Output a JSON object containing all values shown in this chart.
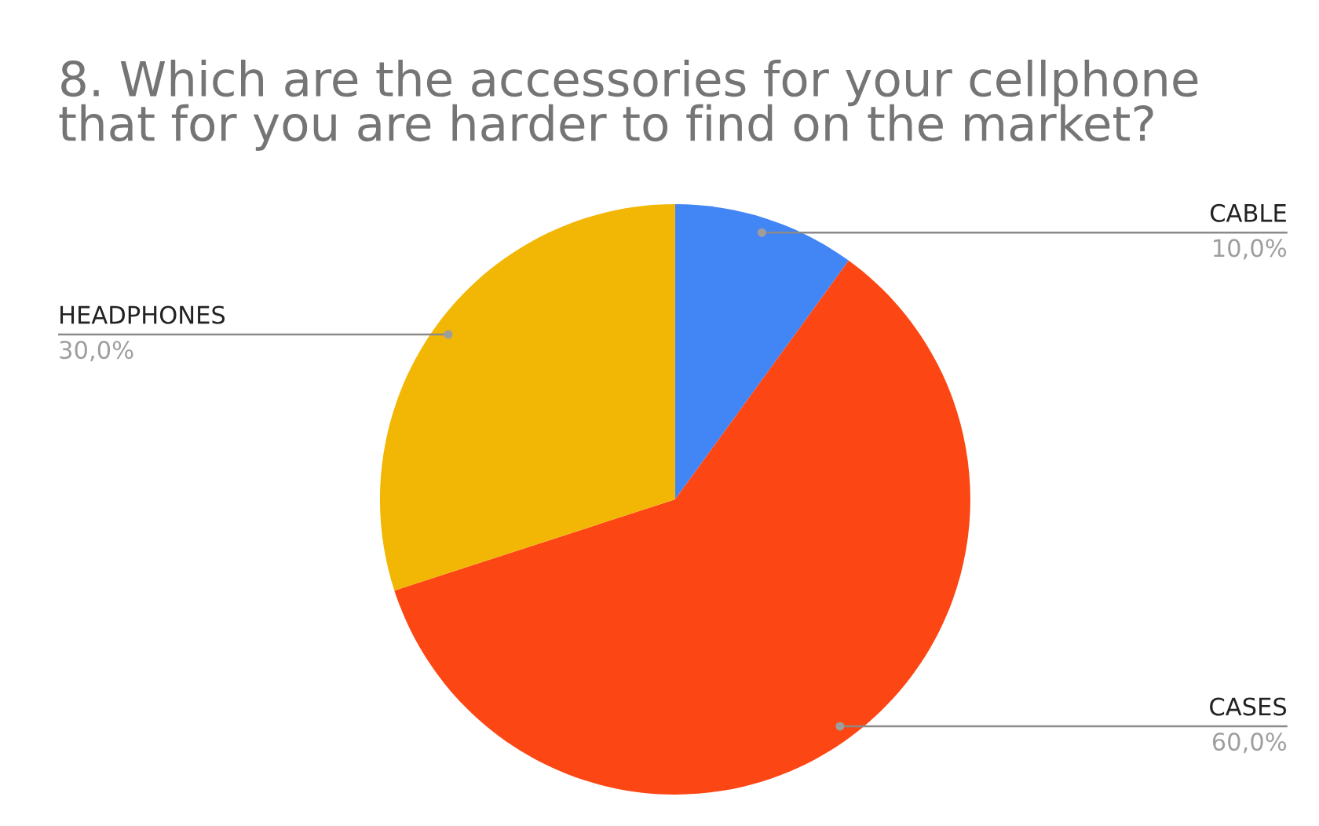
{
  "chart_data": {
    "type": "pie",
    "title": "8. Which are the accessories for your cellphone\nthat for you are harder to find on the market?",
    "categories": [
      "CABLE",
      "CASES",
      "HEADPHONES"
    ],
    "values": [
      10,
      60,
      30
    ],
    "colors": [
      "#4285f4",
      "#fc4614",
      "#f2b705"
    ],
    "value_labels": [
      "10,0%",
      "60,0%",
      "30,0%"
    ]
  }
}
